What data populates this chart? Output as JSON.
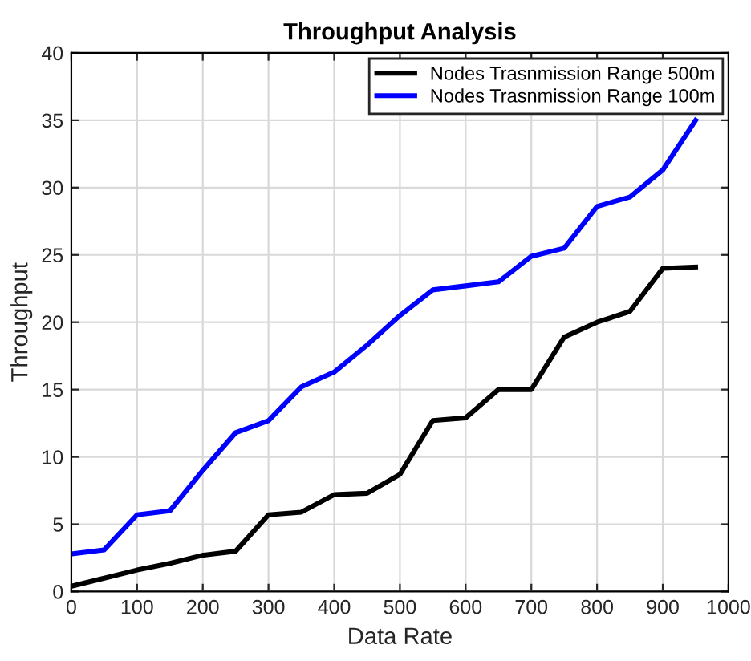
{
  "chart_data": {
    "type": "line",
    "title": "Throughput Analysis",
    "xlabel": "Data Rate",
    "ylabel": "Throughput",
    "x": [
      0,
      50,
      100,
      150,
      200,
      250,
      300,
      350,
      400,
      450,
      500,
      550,
      600,
      650,
      700,
      750,
      800,
      850,
      900,
      950
    ],
    "series": [
      {
        "name": "Nodes Trasnmission Range 500m",
        "color": "#000000",
        "values": [
          0.4,
          1.0,
          1.6,
          2.1,
          2.7,
          3.0,
          5.7,
          5.9,
          7.2,
          7.3,
          8.7,
          12.7,
          12.9,
          15.0,
          15.0,
          18.9,
          20.0,
          20.8,
          24.0,
          24.1
        ]
      },
      {
        "name": "Nodes Trasnmission Range 100m",
        "color": "#0000ff",
        "values": [
          2.8,
          3.1,
          5.7,
          6.0,
          9.0,
          11.8,
          12.7,
          15.2,
          16.3,
          18.3,
          20.5,
          22.4,
          22.7,
          23.0,
          24.9,
          25.5,
          28.6,
          29.3,
          31.3,
          35.0
        ]
      }
    ],
    "xlim": [
      0,
      1000
    ],
    "xticks": [
      0,
      100,
      200,
      300,
      400,
      500,
      600,
      700,
      800,
      900,
      1000
    ],
    "ylim": [
      0,
      40
    ],
    "yticks": [
      0,
      5,
      10,
      15,
      20,
      25,
      30,
      35,
      40
    ],
    "grid": true,
    "legend": "top right",
    "marker": "none",
    "line_style": "solid"
  }
}
